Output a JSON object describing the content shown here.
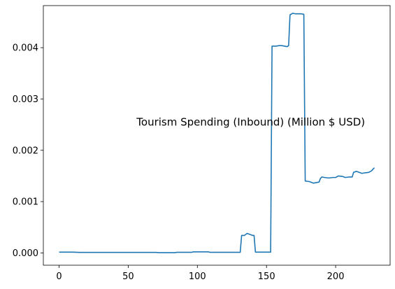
{
  "chart_data": {
    "type": "line",
    "title": "",
    "xlabel": "",
    "ylabel": "",
    "xlim": [
      -11.4,
      239.4
    ],
    "ylim": [
      -0.00024,
      0.00482
    ],
    "grid": false,
    "legend": "none",
    "x_ticks": [
      0,
      50,
      100,
      150,
      200
    ],
    "x_tick_labels": [
      "0",
      "50",
      "100",
      "150",
      "200"
    ],
    "y_ticks": [
      0.0,
      0.001,
      0.002,
      0.003,
      0.004
    ],
    "y_tick_labels": [
      "0.000",
      "0.001",
      "0.002",
      "0.003",
      "0.004"
    ],
    "annotation": {
      "text": "Tourism Spending (Inbound) (Million $ USD)",
      "x": 56,
      "y": 0.00248
    },
    "line_color": "#1f77b4",
    "series": [
      {
        "points": [
          [
            0,
            1.5e-05
          ],
          [
            10,
            1.5e-05
          ],
          [
            15,
            1e-05
          ],
          [
            30,
            1e-05
          ],
          [
            50,
            1e-05
          ],
          [
            70,
            1e-05
          ],
          [
            72,
            5e-06
          ],
          [
            84,
            5e-06
          ],
          [
            85,
            1.2e-05
          ],
          [
            96,
            1.2e-05
          ],
          [
            97,
            2e-05
          ],
          [
            108,
            2e-05
          ],
          [
            109,
            1.2e-05
          ],
          [
            120,
            1.2e-05
          ],
          [
            131,
            1.2e-05
          ],
          [
            132,
            0.00034
          ],
          [
            134,
            0.00034
          ],
          [
            135,
            0.00036
          ],
          [
            136,
            0.00038
          ],
          [
            138,
            0.00036
          ],
          [
            140,
            0.00034
          ],
          [
            141,
            0.00034
          ],
          [
            142,
            1.5e-05
          ],
          [
            153,
            1.5e-05
          ],
          [
            154,
            0.00403
          ],
          [
            157,
            0.00403
          ],
          [
            159,
            0.00404
          ],
          [
            161,
            0.00404
          ],
          [
            163,
            0.00403
          ],
          [
            165,
            0.00402
          ],
          [
            166,
            0.00404
          ],
          [
            167,
            0.00464
          ],
          [
            169,
            0.00467
          ],
          [
            171,
            0.00466
          ],
          [
            175,
            0.00466
          ],
          [
            177,
            0.00465
          ],
          [
            178,
            0.0014
          ],
          [
            181,
            0.00139
          ],
          [
            184,
            0.00136
          ],
          [
            188,
            0.00138
          ],
          [
            189,
            0.00145
          ],
          [
            190,
            0.00148
          ],
          [
            192,
            0.00147
          ],
          [
            195,
            0.00146
          ],
          [
            198,
            0.00147
          ],
          [
            200,
            0.00147
          ],
          [
            202,
            0.0015
          ],
          [
            205,
            0.00149
          ],
          [
            207,
            0.00147
          ],
          [
            210,
            0.00148
          ],
          [
            212,
            0.00148
          ],
          [
            213,
            0.00157
          ],
          [
            215,
            0.00159
          ],
          [
            217,
            0.00157
          ],
          [
            219,
            0.00155
          ],
          [
            221,
            0.00156
          ],
          [
            224,
            0.00157
          ],
          [
            226,
            0.0016
          ],
          [
            228,
            0.00166
          ]
        ]
      }
    ]
  }
}
